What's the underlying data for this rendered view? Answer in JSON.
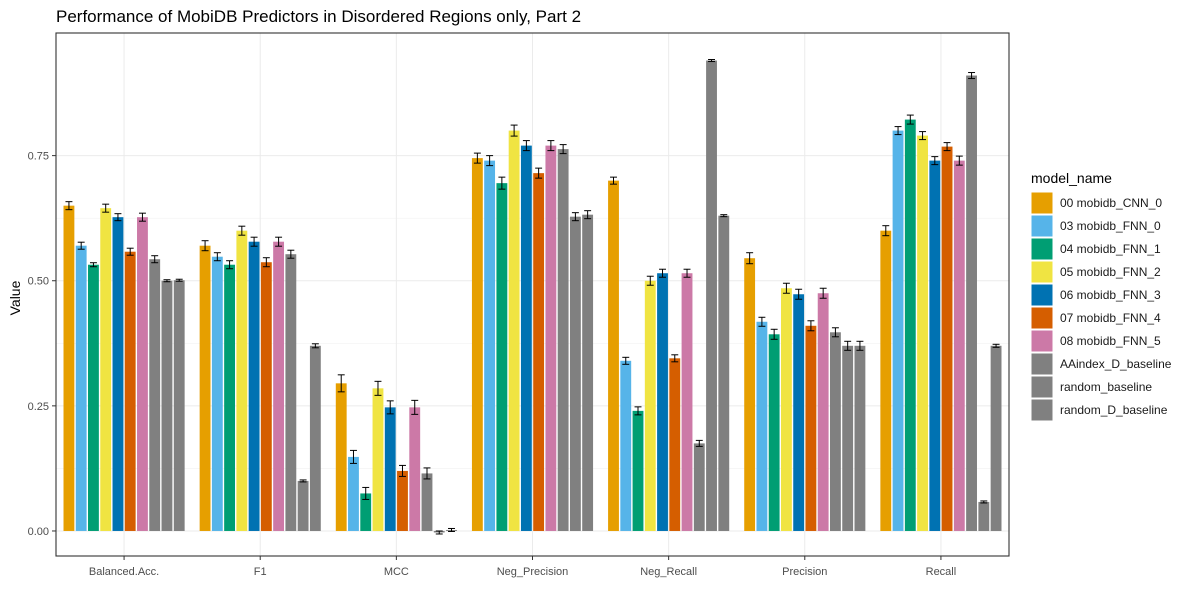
{
  "chart_data": {
    "type": "bar",
    "title": "Performance of MobiDB Predictors in Disordered Regions only, Part 2",
    "xlabel": "",
    "ylabel": "Value",
    "ylim": [
      -0.05,
      0.995
    ],
    "y_ticks": [
      0.0,
      0.25,
      0.5,
      0.75
    ],
    "y_tick_labels": [
      "0.00",
      "0.25",
      "0.50",
      "0.75"
    ],
    "grid": true,
    "legend_position": "right",
    "legend_title": "model_name",
    "categories": [
      "Balanced.Acc.",
      "F1",
      "MCC",
      "Neg_Precision",
      "Neg_Recall",
      "Precision",
      "Recall"
    ],
    "series": [
      {
        "name": "00 mobidb_CNN_0",
        "color": "#E69F00",
        "values": [
          0.65,
          0.57,
          0.295,
          0.745,
          0.7,
          0.545,
          0.6
        ],
        "errors": [
          0.008,
          0.01,
          0.017,
          0.01,
          0.007,
          0.011,
          0.01
        ]
      },
      {
        "name": "03 mobidb_FNN_0",
        "color": "#56B4E9",
        "values": [
          0.57,
          0.548,
          0.148,
          0.74,
          0.34,
          0.418,
          0.8
        ],
        "errors": [
          0.007,
          0.008,
          0.013,
          0.01,
          0.007,
          0.009,
          0.008
        ]
      },
      {
        "name": "04 mobidb_FNN_1",
        "color": "#009E73",
        "values": [
          0.532,
          0.532,
          0.075,
          0.695,
          0.24,
          0.393,
          0.822
        ],
        "errors": [
          0.004,
          0.008,
          0.012,
          0.012,
          0.008,
          0.01,
          0.009
        ]
      },
      {
        "name": "05 mobidb_FNN_2",
        "color": "#F0E442",
        "values": [
          0.645,
          0.6,
          0.285,
          0.8,
          0.5,
          0.485,
          0.79
        ],
        "errors": [
          0.008,
          0.009,
          0.014,
          0.011,
          0.009,
          0.01,
          0.008
        ]
      },
      {
        "name": "06 mobidb_FNN_3",
        "color": "#0072B2",
        "values": [
          0.627,
          0.578,
          0.247,
          0.77,
          0.515,
          0.473,
          0.74
        ],
        "errors": [
          0.007,
          0.009,
          0.013,
          0.01,
          0.008,
          0.01,
          0.008
        ]
      },
      {
        "name": "07 mobidb_FNN_4",
        "color": "#D55E00",
        "values": [
          0.558,
          0.537,
          0.12,
          0.715,
          0.345,
          0.41,
          0.768
        ],
        "errors": [
          0.007,
          0.009,
          0.011,
          0.01,
          0.007,
          0.01,
          0.008
        ]
      },
      {
        "name": "08 mobidb_FNN_5",
        "color": "#CC79A7",
        "values": [
          0.627,
          0.578,
          0.247,
          0.77,
          0.515,
          0.475,
          0.74
        ],
        "errors": [
          0.008,
          0.009,
          0.014,
          0.01,
          0.008,
          0.01,
          0.009
        ]
      },
      {
        "name": "AAindex_D_baseline",
        "color": "#808080",
        "values": [
          0.543,
          0.553,
          0.115,
          0.763,
          0.175,
          0.397,
          0.91
        ],
        "errors": [
          0.007,
          0.008,
          0.011,
          0.009,
          0.006,
          0.009,
          0.006
        ]
      },
      {
        "name": "random_baseline",
        "color": "#808080",
        "values": [
          0.5,
          0.1,
          -0.003,
          0.628,
          0.94,
          0.37,
          0.058
        ],
        "errors": [
          0.002,
          0.002,
          0.003,
          0.008,
          0.002,
          0.009,
          0.002
        ]
      },
      {
        "name": "random_D_baseline",
        "color": "#808080",
        "values": [
          0.501,
          0.37,
          0.002,
          0.632,
          0.63,
          0.37,
          0.37
        ],
        "errors": [
          0.002,
          0.004,
          0.003,
          0.008,
          0.002,
          0.009,
          0.003
        ]
      }
    ]
  }
}
